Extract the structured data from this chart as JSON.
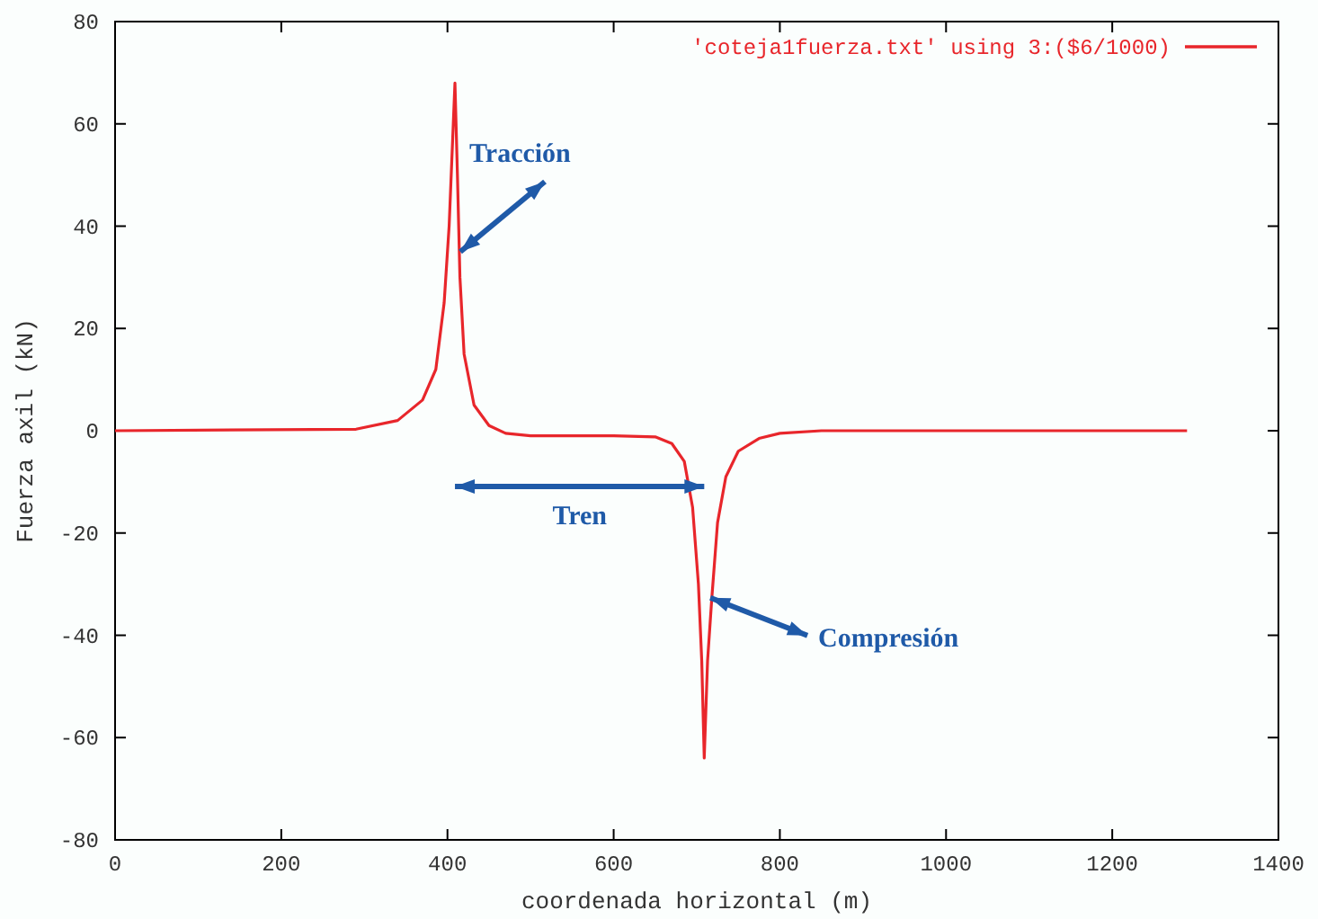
{
  "chart_data": {
    "type": "line",
    "xlabel": "coordenada horizontal (m)",
    "ylabel": "Fuerza axil (kN)",
    "xlim": [
      0,
      1400
    ],
    "xticks": [
      0,
      200,
      400,
      600,
      800,
      1000,
      1200,
      1400
    ],
    "ylim": [
      -80,
      80
    ],
    "yticks": [
      -80,
      -60,
      -40,
      -20,
      0,
      20,
      40,
      60,
      80
    ],
    "grid": false,
    "legend": "top right",
    "marker": "none",
    "line_style": "solid",
    "series": [
      {
        "name": "'coteja1fuerza.txt' using 3:($6/1000)",
        "color": "#e8262b",
        "x": [
          0,
          290,
          340,
          370,
          386,
          396,
          402,
          407,
          409,
          412,
          415,
          420,
          432,
          450,
          470,
          500,
          600,
          650,
          670,
          685,
          695,
          702,
          706,
          709,
          713,
          718,
          725,
          735,
          750,
          775,
          800,
          850,
          1290
        ],
        "values": [
          0,
          0.3,
          2,
          6,
          12,
          25,
          40,
          60,
          68,
          50,
          30,
          15,
          5,
          1,
          -0.5,
          -1,
          -1,
          -1.2,
          -2.5,
          -6,
          -15,
          -30,
          -45,
          -64,
          -45,
          -33,
          -18,
          -9,
          -4,
          -1.5,
          -0.5,
          0,
          0
        ]
      }
    ],
    "annotations": [
      {
        "text": "Tracción",
        "x": 409,
        "y": 35
      },
      "Tren",
      {
        "text": "Compresión",
        "x": 712,
        "y": -33
      }
    ]
  }
}
